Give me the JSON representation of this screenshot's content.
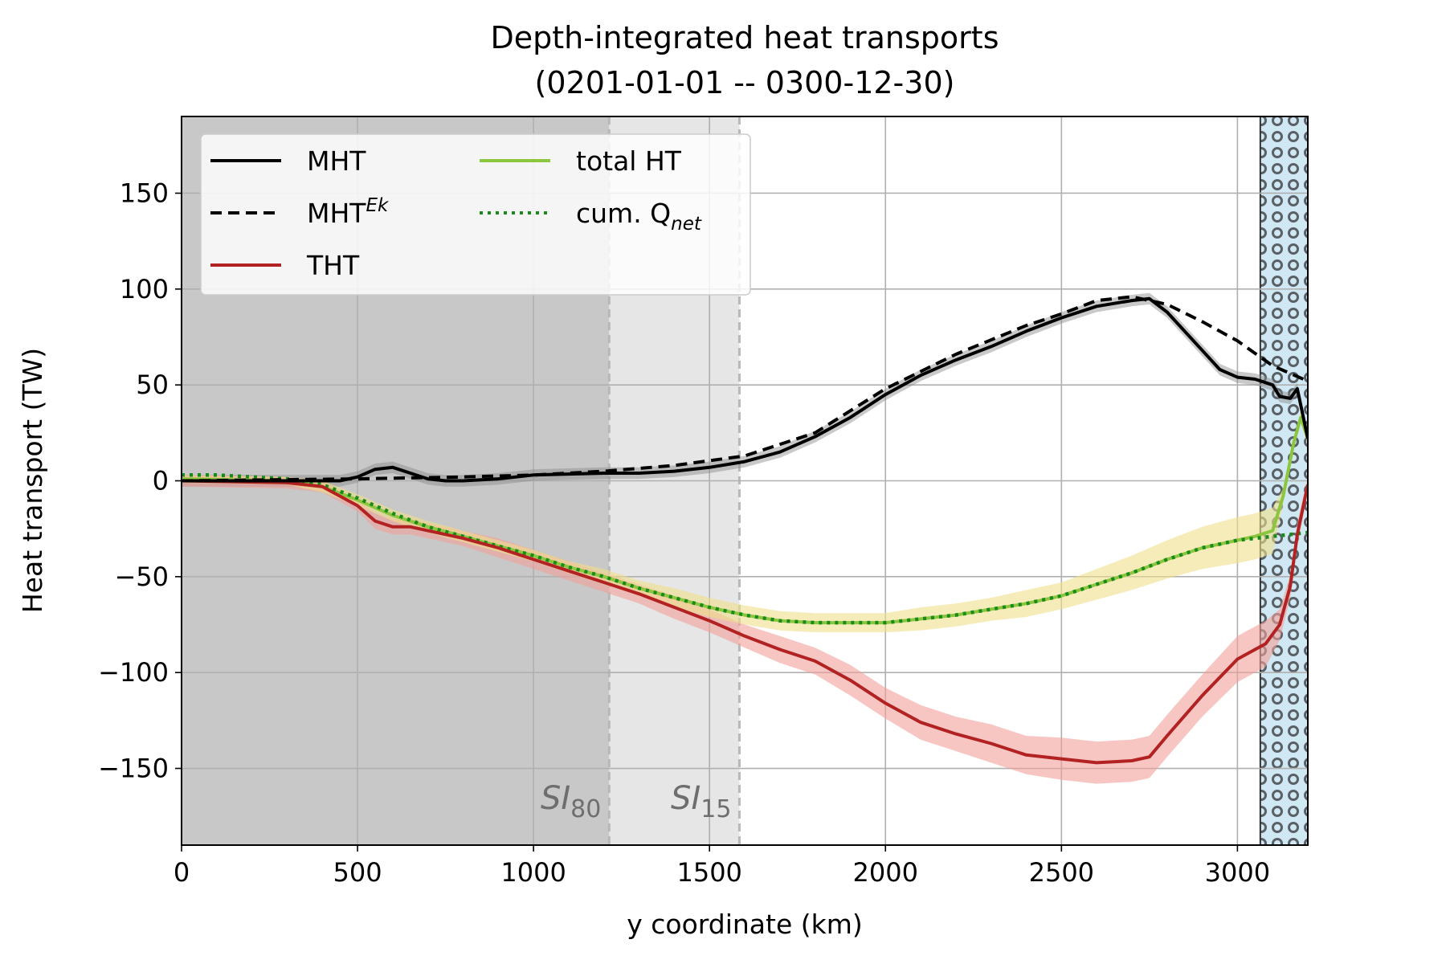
{
  "chart_data": {
    "type": "line",
    "title": "Depth-integrated heat transports",
    "subtitle": "(0201-01-01 -- 0300-12-30)",
    "xlabel": "y coordinate (km)",
    "ylabel": "Heat transport (TW)",
    "xlim": [
      0,
      3200
    ],
    "ylim": [
      -190,
      190
    ],
    "xticks": [
      0,
      500,
      1000,
      1500,
      2000,
      2500,
      3000
    ],
    "yticks": [
      150,
      100,
      50,
      0,
      -50,
      -100,
      -150
    ],
    "xtick_labels": [
      "0",
      "500",
      "1000",
      "1500",
      "2000",
      "2500",
      "3000"
    ],
    "ytick_labels": [
      "150",
      "100",
      "50",
      "0",
      "−50",
      "−100",
      "−150"
    ],
    "grid": true,
    "legend_position": "top-left",
    "regions": [
      {
        "name": "SI80",
        "label_main": "SI",
        "label_sub": "80",
        "x_end": 1215,
        "color": "#c8c8c8"
      },
      {
        "name": "SI15",
        "label_main": "SI",
        "label_sub": "15",
        "x_end": 1585,
        "color": "#e6e6e6"
      },
      {
        "name": "land",
        "x_start": 3065,
        "x_end": 3200,
        "color": "#cfe8f3"
      }
    ],
    "series": [
      {
        "name": "MHT",
        "legend_main": "MHT",
        "legend_sup": "",
        "legend_sub": "",
        "color": "#000000",
        "style": "solid",
        "x": [
          0,
          300,
          400,
          450,
          500,
          550,
          600,
          650,
          700,
          750,
          800,
          900,
          1000,
          1100,
          1200,
          1300,
          1400,
          1500,
          1600,
          1700,
          1800,
          1900,
          2000,
          2100,
          2200,
          2300,
          2400,
          2500,
          2600,
          2700,
          2750,
          2800,
          2900,
          2950,
          3000,
          3050,
          3100,
          3120,
          3150,
          3170,
          3200
        ],
        "y": [
          0,
          0,
          0,
          0,
          2,
          6,
          7,
          4,
          1,
          0,
          0,
          1,
          3,
          3.5,
          4,
          4,
          5,
          7,
          10,
          15,
          23,
          33,
          45,
          55,
          63,
          70,
          78,
          85,
          91,
          94,
          95,
          88,
          68,
          58,
          54,
          53,
          50,
          44,
          43,
          48,
          22
        ],
        "band": 3
      },
      {
        "name": "MHT^Ek",
        "legend_main": "MHT",
        "legend_sup": "Ek",
        "legend_sub": "",
        "color": "#000000",
        "style": "dashed",
        "x": [
          0,
          500,
          800,
          1000,
          1200,
          1400,
          1600,
          1800,
          2000,
          2200,
          2400,
          2500,
          2600,
          2700,
          2800,
          2900,
          3000,
          3100,
          3200
        ],
        "y": [
          0,
          1,
          2,
          3,
          5,
          8,
          13,
          25,
          48,
          66,
          81,
          87,
          94,
          96,
          92,
          83,
          73,
          60,
          52
        ]
      },
      {
        "name": "THT",
        "legend_main": "THT",
        "legend_sup": "",
        "legend_sub": "",
        "color": "#b22222",
        "style": "solid",
        "x": [
          0,
          300,
          400,
          450,
          500,
          550,
          600,
          650,
          700,
          800,
          900,
          1000,
          1100,
          1200,
          1300,
          1400,
          1500,
          1600,
          1700,
          1800,
          1900,
          2000,
          2100,
          2200,
          2300,
          2400,
          2500,
          2600,
          2700,
          2750,
          2800,
          2900,
          3000,
          3050,
          3080,
          3120,
          3150,
          3170,
          3200
        ],
        "y": [
          0,
          -1,
          -3,
          -8,
          -13,
          -21,
          -24,
          -24,
          -26,
          -30,
          -35,
          -41,
          -47,
          -53,
          -59,
          -66,
          -73,
          -81,
          -88,
          -94,
          -104,
          -116,
          -126,
          -132,
          -137,
          -143,
          -145,
          -147,
          -146,
          -144,
          -133,
          -112,
          -93,
          -88,
          -85,
          -75,
          -55,
          -28,
          -2
        ],
        "band_color": "#f4a09a",
        "band": [
          3,
          3,
          3,
          3,
          3,
          4,
          4,
          4,
          4,
          4,
          5,
          5,
          5,
          5,
          5,
          6,
          6,
          6,
          7,
          7,
          8,
          8,
          9,
          9,
          10,
          10,
          11,
          11,
          11,
          11,
          11,
          11,
          12,
          12,
          12,
          8,
          6,
          6,
          4
        ]
      },
      {
        "name": "total HT",
        "legend_main": "total HT",
        "legend_sup": "",
        "legend_sub": "",
        "color": "#8bc63e",
        "style": "solid",
        "x": [
          0,
          300,
          400,
          500,
          600,
          700,
          800,
          900,
          1000,
          1100,
          1200,
          1300,
          1400,
          1500,
          1600,
          1700,
          1800,
          1900,
          2000,
          2100,
          2200,
          2300,
          2400,
          2500,
          2600,
          2700,
          2800,
          2900,
          3000,
          3050,
          3100,
          3130,
          3160,
          3180,
          3200
        ],
        "y": [
          1,
          0,
          -3,
          -10,
          -18,
          -24,
          -29,
          -34,
          -39,
          -45,
          -50,
          -56,
          -61,
          -66,
          -70,
          -73,
          -74,
          -74,
          -74,
          -72,
          -70,
          -67,
          -64,
          -60,
          -54,
          -48,
          -41,
          -35,
          -31,
          -29,
          -26,
          -8,
          20,
          33,
          22
        ],
        "band_color": "#f0e08a",
        "band": [
          2,
          2,
          3,
          3,
          3,
          3,
          3,
          3,
          3,
          3,
          4,
          4,
          5,
          5,
          5,
          5,
          5,
          5,
          5,
          6,
          6,
          6,
          7,
          7,
          8,
          9,
          10,
          11,
          12,
          12,
          12,
          4,
          3,
          3,
          3
        ]
      },
      {
        "name": "cum. Q_net",
        "legend_main": "cum. Q",
        "legend_sup": "",
        "legend_sub": "net",
        "color": "#1a8a1a",
        "style": "dotted",
        "x": [
          0,
          100,
          200,
          300,
          400,
          500,
          600,
          700,
          800,
          900,
          1000,
          1100,
          1200,
          1300,
          1400,
          1500,
          1600,
          1700,
          1800,
          1900,
          2000,
          2100,
          2200,
          2300,
          2400,
          2500,
          2600,
          2700,
          2800,
          2900,
          3000,
          3100,
          3200
        ],
        "y": [
          3,
          3,
          2,
          1,
          -2,
          -9,
          -17,
          -24,
          -29,
          -34,
          -39,
          -45,
          -50,
          -56,
          -61,
          -66,
          -70,
          -73,
          -74,
          -74,
          -74,
          -72,
          -70,
          -67,
          -64,
          -60,
          -54,
          -48,
          -41,
          -35,
          -31,
          -29,
          -27
        ]
      }
    ]
  }
}
